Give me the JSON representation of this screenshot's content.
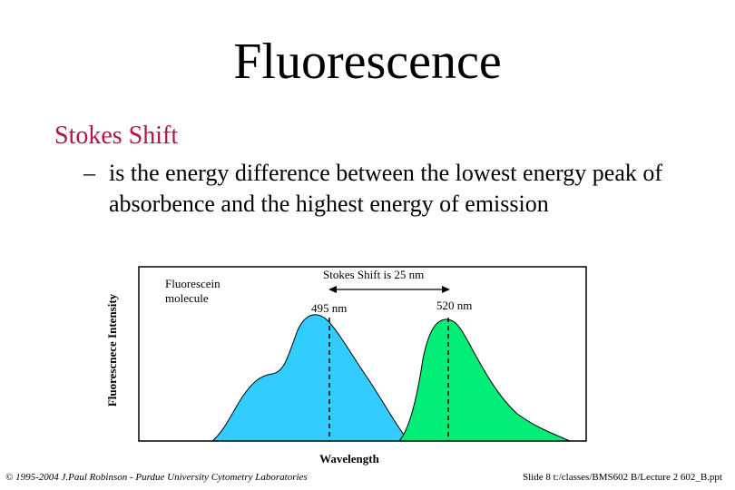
{
  "slide": {
    "title": "Fluorescence",
    "bullet": "Stokes Shift",
    "sub_bullet_dash": "–",
    "sub_bullet": "is the energy difference between the lowest energy peak of absorbence and the highest energy of emission"
  },
  "figure": {
    "y_axis_label": "Fluorescnece Intensity",
    "x_axis_label": "Wavelength",
    "molecule_label_line1": "Fluorescein",
    "molecule_label_line2": "molecule",
    "shift_label": "Stokes Shift is 25 nm",
    "peak1_label": "495 nm",
    "peak2_label": "520 nm",
    "absorbance_color": "#33ccff",
    "emission_color": "#00ee77"
  },
  "footer": {
    "left": "© 1995-2004 J.Paul Robinson - Purdue University Cytometry Laboratories",
    "right": "Slide 8 t:/classes/BMS602 B/Lecture 2 602_B.ppt"
  }
}
